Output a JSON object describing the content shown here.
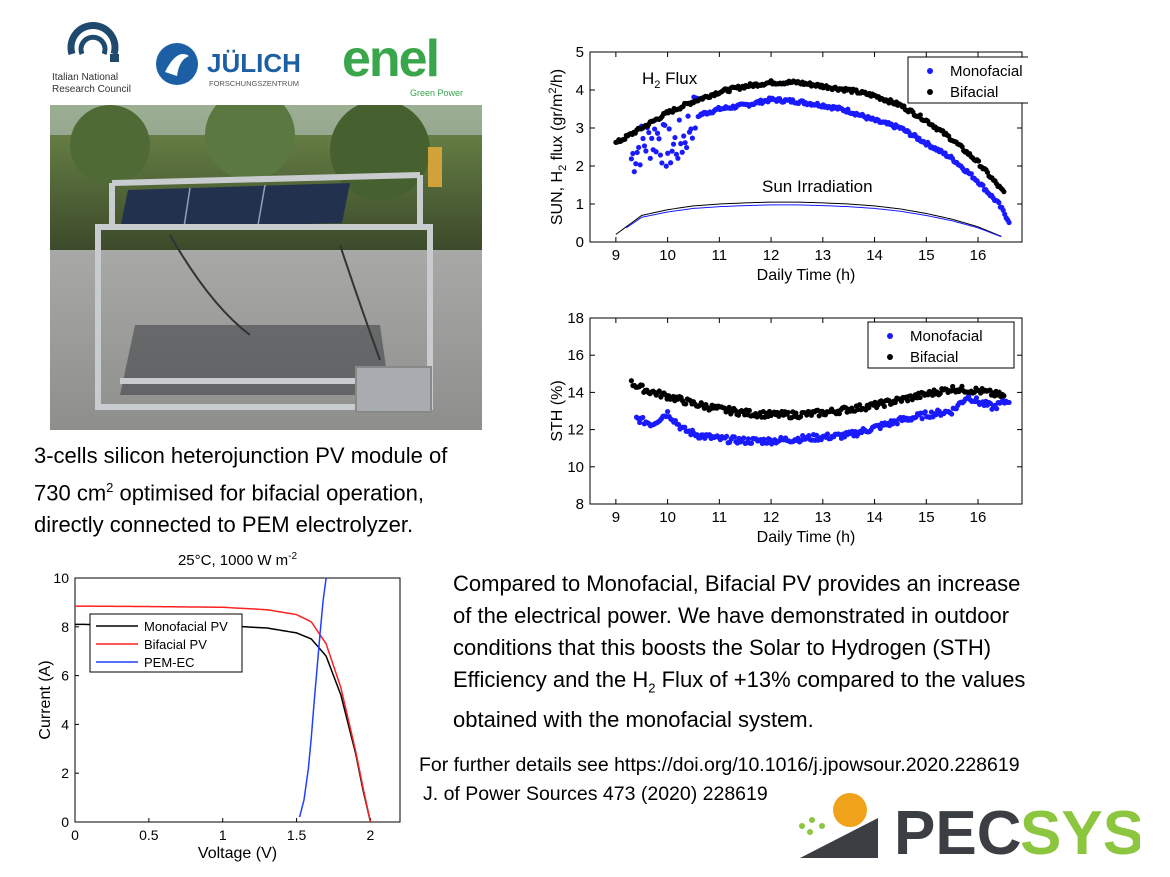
{
  "logos": {
    "cnr": {
      "line1": "Italian National",
      "line2": "Research Council"
    },
    "julich": {
      "name": "JÜLICH",
      "sub": "FORSCHUNGSZENTRUM"
    },
    "enel": {
      "name": "enel",
      "sub": "Green Power"
    },
    "pecsys": {
      "part1": "PEC",
      "part2": "SYS"
    }
  },
  "caption": {
    "line1": "3-cells silicon heterojunction PV module of",
    "line2a": "730 cm",
    "line2sup": "2",
    "line2b": " optimised for bifacial operation,",
    "line3": "directly connected to PEM electrolyzer."
  },
  "body": {
    "line1": "Compared to Monofacial, Bifacial PV provides an increase",
    "line2": "of the electrical power. We have demonstrated in outdoor",
    "line3": "conditions that this  boosts the Solar to Hydrogen (STH)",
    "line4a": "Efficiency and the H",
    "line4sub": "2",
    "line4b": " Flux of +13% compared to the values",
    "line5": "obtained with the monofacial system."
  },
  "references": {
    "doi": "For further details see https://doi.org/10.1016/j.jpowsour.2020.228619",
    "journal": "J. of Power Sources 473 (2020) 228619"
  },
  "colors": {
    "mono": "#1a1aff",
    "bi": "#000000",
    "bifacial_pv": "#ff2020",
    "pem": "#2040ff"
  },
  "chart_data": [
    {
      "type": "scatter",
      "id": "h2flux",
      "xlabel": "Daily Time (h)",
      "ylabel": "SUN, H2 flux (gr/m2/h)",
      "ylabel_parts": {
        "a": "SUN, H",
        "b": "2",
        "c": " flux (gr/m",
        "d": "2",
        "e": "/h)"
      },
      "xlim": [
        8.5,
        16.85
      ],
      "ylim": [
        0,
        5
      ],
      "xticks": [
        9,
        10,
        11,
        12,
        13,
        14,
        15,
        16
      ],
      "yticks": [
        0,
        1,
        2,
        3,
        4,
        5
      ],
      "annotations": [
        {
          "text_a": "H",
          "text_b": "2",
          "text_c": " Flux"
        },
        {
          "text": "Sun Irradiation"
        }
      ],
      "legend": {
        "position": "top-right",
        "entries": [
          "Monofacial",
          "Bifacial"
        ]
      },
      "series": [
        {
          "name": "Monofacial",
          "x": [
            9.3,
            9.5,
            9.8,
            10.0,
            10.3,
            10.5,
            11.0,
            11.5,
            12.0,
            12.5,
            13.0,
            13.5,
            14.0,
            14.5,
            15.0,
            15.5,
            16.0,
            16.4,
            16.6
          ],
          "y": [
            2.2,
            2.6,
            2.8,
            2.4,
            2.7,
            3.3,
            3.5,
            3.6,
            3.75,
            3.7,
            3.6,
            3.45,
            3.2,
            3.0,
            2.6,
            2.2,
            1.6,
            1.0,
            0.55
          ]
        },
        {
          "name": "Bifacial",
          "x": [
            9.0,
            9.5,
            10.0,
            10.5,
            11.0,
            11.5,
            12.0,
            12.5,
            13.0,
            13.5,
            14.0,
            14.5,
            15.0,
            15.5,
            16.0,
            16.5
          ],
          "y": [
            2.6,
            3.0,
            3.4,
            3.7,
            3.95,
            4.1,
            4.2,
            4.2,
            4.1,
            4.0,
            3.85,
            3.6,
            3.2,
            2.7,
            2.1,
            1.3
          ]
        },
        {
          "name": "Sun Irradiation",
          "x": [
            9.0,
            9.5,
            10.0,
            10.5,
            11.0,
            11.5,
            12.0,
            12.5,
            13.0,
            13.5,
            14.0,
            14.5,
            15.0,
            15.5,
            16.0,
            16.5
          ],
          "y": [
            0.2,
            0.7,
            0.85,
            0.95,
            1.0,
            1.03,
            1.05,
            1.05,
            1.03,
            1.0,
            0.95,
            0.87,
            0.75,
            0.6,
            0.4,
            0.12
          ]
        }
      ]
    },
    {
      "type": "scatter",
      "id": "sth",
      "xlabel": "Daily Time (h)",
      "ylabel": "STH (%)",
      "xlim": [
        8.5,
        16.85
      ],
      "ylim": [
        8,
        18
      ],
      "xticks": [
        9,
        10,
        11,
        12,
        13,
        14,
        15,
        16
      ],
      "yticks": [
        8,
        10,
        12,
        14,
        16,
        18
      ],
      "legend": {
        "position": "top-right",
        "entries": [
          "Monofacial",
          "Bifacial"
        ]
      },
      "series": [
        {
          "name": "Monofacial",
          "x": [
            9.4,
            9.7,
            10.0,
            10.3,
            10.6,
            11.0,
            11.5,
            12.0,
            12.5,
            13.0,
            13.5,
            14.0,
            14.5,
            15.0,
            15.5,
            15.8,
            16.0,
            16.3,
            16.6
          ],
          "y": [
            12.6,
            12.3,
            12.9,
            12.0,
            11.7,
            11.5,
            11.4,
            11.4,
            11.5,
            11.6,
            11.7,
            12.1,
            12.5,
            12.8,
            13.0,
            13.8,
            13.5,
            13.2,
            13.6
          ]
        },
        {
          "name": "Bifacial",
          "x": [
            9.3,
            9.6,
            10.0,
            10.5,
            11.0,
            11.5,
            12.0,
            12.5,
            13.0,
            13.5,
            14.0,
            14.5,
            15.0,
            15.5,
            16.0,
            16.5
          ],
          "y": [
            14.5,
            14.1,
            13.8,
            13.4,
            13.1,
            12.9,
            12.8,
            12.8,
            12.9,
            13.1,
            13.3,
            13.6,
            13.9,
            14.2,
            14.1,
            13.8
          ]
        }
      ]
    },
    {
      "type": "line",
      "id": "iv",
      "title": "25°C, 1000 W m-2",
      "title_parts": {
        "a": "25°C, 1000 W m",
        "b": "-2"
      },
      "xlabel": "Voltage (V)",
      "ylabel": "Current (A)",
      "xlim": [
        0,
        2.2
      ],
      "ylim": [
        0,
        10
      ],
      "xticks": [
        "0",
        "0.5",
        "1",
        "1.5",
        "2"
      ],
      "yticks": [
        "0",
        "2",
        "4",
        "6",
        "8",
        "10"
      ],
      "legend": {
        "position": "center-left",
        "entries": [
          "Monofacial PV",
          "Bifacial PV",
          "PEM-EC"
        ]
      },
      "series": [
        {
          "name": "Monofacial PV",
          "x": [
            0,
            0.5,
            1.0,
            1.3,
            1.5,
            1.6,
            1.7,
            1.8,
            1.9,
            1.95,
            2.0
          ],
          "y": [
            8.1,
            8.08,
            8.05,
            7.95,
            7.75,
            7.5,
            6.8,
            5.2,
            2.8,
            1.3,
            0
          ]
        },
        {
          "name": "Bifacial PV",
          "x": [
            0,
            0.5,
            1.0,
            1.3,
            1.5,
            1.6,
            1.7,
            1.8,
            1.9,
            1.95,
            2.0
          ],
          "y": [
            8.85,
            8.83,
            8.8,
            8.7,
            8.5,
            8.2,
            7.3,
            5.5,
            2.9,
            1.4,
            0
          ]
        },
        {
          "name": "PEM-EC",
          "x": [
            1.52,
            1.55,
            1.58,
            1.6,
            1.62,
            1.64,
            1.66,
            1.68,
            1.7
          ],
          "y": [
            0.2,
            0.9,
            2.2,
            3.5,
            5.0,
            6.4,
            7.8,
            9.1,
            10.0
          ]
        }
      ]
    }
  ]
}
